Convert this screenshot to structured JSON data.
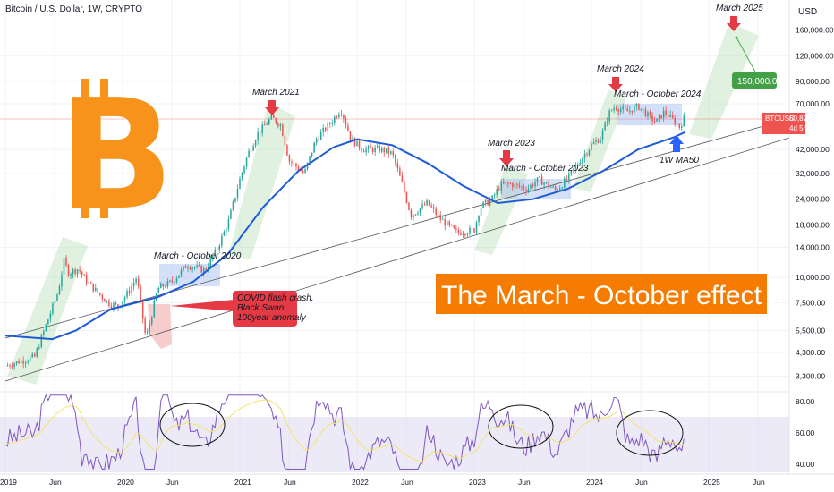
{
  "header": {
    "title": "Bitcoin / U.S. Dollar, 1W, CRYPTO",
    "currency": "USD"
  },
  "colors": {
    "up": "#26a69a",
    "down": "#ef5350",
    "ma": "#1e5bd6",
    "rsi": "#7e57c2",
    "rsi_ma": "#f3e36b",
    "orange": "#f7931a",
    "red": "#e53945",
    "green": "#4caf50",
    "blue": "#2962ff"
  },
  "chart_data": {
    "type": "line",
    "title": "Bitcoin / U.S. Dollar, 1W, CRYPTO",
    "y_scale": "log",
    "ylim": [
      2700,
      200000
    ],
    "y_ticks": [
      "160,000.00",
      "120,000.00",
      "90,000.00",
      "70,000.00",
      "60,871.73",
      "42,000.00",
      "32,000.00",
      "24,000.00",
      "18,000.00",
      "14,000.00",
      "10,000.00",
      "7,500.00",
      "5,500.00",
      "4,300.00",
      "3,300.00"
    ],
    "x_ticks": [
      "2019",
      "Jun",
      "2020",
      "Jun",
      "2021",
      "Jun",
      "2022",
      "Jun",
      "2023",
      "Jun",
      "2024",
      "Jun",
      "2025",
      "Jun"
    ],
    "series": [
      {
        "values": [
          [
            2019.0,
            3700
          ],
          [
            2019.12,
            3900
          ],
          [
            2019.25,
            4100
          ],
          [
            2019.33,
            5500
          ],
          [
            2019.45,
            8500
          ],
          [
            2019.5,
            12000
          ],
          [
            2019.54,
            10500
          ],
          [
            2019.62,
            11000
          ],
          [
            2019.7,
            9500
          ],
          [
            2019.8,
            8300
          ],
          [
            2019.88,
            7500
          ],
          [
            2019.96,
            7200
          ],
          [
            2020.05,
            8500
          ],
          [
            2020.12,
            10000
          ],
          [
            2020.2,
            5000
          ],
          [
            2020.3,
            8800
          ],
          [
            2020.42,
            9500
          ],
          [
            2020.55,
            11500
          ],
          [
            2020.7,
            10800
          ],
          [
            2020.8,
            13500
          ],
          [
            2020.9,
            18500
          ],
          [
            2021.0,
            30000
          ],
          [
            2021.07,
            40000
          ],
          [
            2021.15,
            50000
          ],
          [
            2021.27,
            60000
          ],
          [
            2021.35,
            55000
          ],
          [
            2021.42,
            37000
          ],
          [
            2021.55,
            32000
          ],
          [
            2021.65,
            47000
          ],
          [
            2021.78,
            57000
          ],
          [
            2021.86,
            66000
          ],
          [
            2021.95,
            47000
          ],
          [
            2022.05,
            42000
          ],
          [
            2022.2,
            42000
          ],
          [
            2022.3,
            40000
          ],
          [
            2022.38,
            29000
          ],
          [
            2022.46,
            20000
          ],
          [
            2022.6,
            23000
          ],
          [
            2022.7,
            19500
          ],
          [
            2022.85,
            16500
          ],
          [
            2023.0,
            17000
          ],
          [
            2023.05,
            22000
          ],
          [
            2023.15,
            24000
          ],
          [
            2023.22,
            28000
          ],
          [
            2023.3,
            28500
          ],
          [
            2023.45,
            27000
          ],
          [
            2023.55,
            30000
          ],
          [
            2023.7,
            26500
          ],
          [
            2023.8,
            30500
          ],
          [
            2023.9,
            37000
          ],
          [
            2024.0,
            44000
          ],
          [
            2024.08,
            48000
          ],
          [
            2024.15,
            63000
          ],
          [
            2024.2,
            68000
          ],
          [
            2024.3,
            64000
          ],
          [
            2024.4,
            68000
          ],
          [
            2024.5,
            60000
          ],
          [
            2024.55,
            57000
          ],
          [
            2024.62,
            64000
          ],
          [
            2024.7,
            58000
          ],
          [
            2024.75,
            54000
          ],
          [
            2024.8,
            60871
          ]
        ]
      },
      {
        "name": "1W MA50",
        "values": [
          [
            2019.0,
            5200
          ],
          [
            2019.4,
            5000
          ],
          [
            2019.6,
            5500
          ],
          [
            2019.9,
            7000
          ],
          [
            2020.3,
            8000
          ],
          [
            2020.6,
            9500
          ],
          [
            2020.9,
            13000
          ],
          [
            2021.2,
            22000
          ],
          [
            2021.5,
            33000
          ],
          [
            2021.8,
            43000
          ],
          [
            2022.0,
            47000
          ],
          [
            2022.3,
            44000
          ],
          [
            2022.6,
            36000
          ],
          [
            2022.9,
            28000
          ],
          [
            2023.2,
            23000
          ],
          [
            2023.5,
            24000
          ],
          [
            2023.8,
            27000
          ],
          [
            2024.1,
            33000
          ],
          [
            2024.4,
            42000
          ],
          [
            2024.7,
            48000
          ],
          [
            2024.8,
            51000
          ]
        ]
      }
    ],
    "rsi": {
      "y_ticks": [
        "80.00",
        "60.00",
        "40.00"
      ],
      "band": [
        40,
        70
      ]
    }
  },
  "annotations": {
    "a1": "March - October 2020",
    "a2": "March 2021",
    "a3": "March 2023",
    "a4": "March - October 2023",
    "a5": "March 2024",
    "a6": "March - October 2024",
    "a7": "March 2025",
    "ma_label": "1W MA50",
    "covid_l1": "COVID flash crash.",
    "covid_l2": "Black Swan",
    "covid_l3": "100year anomaly",
    "target": "150,000.00",
    "headline": "The March - October effect !!",
    "price_tag": "BTCUSD",
    "price_value": "60,871.73",
    "price_time": "4d 5h"
  }
}
